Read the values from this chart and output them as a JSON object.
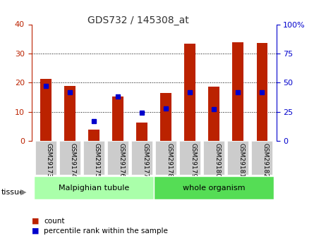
{
  "title": "GDS732 / 145308_at",
  "samples": [
    "GSM29173",
    "GSM29174",
    "GSM29175",
    "GSM29176",
    "GSM29177",
    "GSM29178",
    "GSM29179",
    "GSM29180",
    "GSM29181",
    "GSM29182"
  ],
  "counts": [
    21.2,
    18.9,
    4.0,
    15.2,
    6.2,
    16.5,
    33.3,
    18.7,
    33.8,
    33.5
  ],
  "percentiles": [
    47,
    42,
    17,
    38,
    24,
    28,
    42,
    27,
    42,
    42
  ],
  "bar_color": "#bb2200",
  "dot_color": "#0000cc",
  "ylim_left": [
    0,
    40
  ],
  "ylim_right": [
    0,
    100
  ],
  "left_ticks": [
    0,
    10,
    20,
    30,
    40
  ],
  "right_ticks": [
    0,
    25,
    50,
    75,
    100
  ],
  "right_tick_labels": [
    "0",
    "25",
    "50",
    "75",
    "100%"
  ],
  "groups": [
    {
      "label": "Malpighian tubule",
      "start": 0,
      "end": 5,
      "color": "#aaffaa"
    },
    {
      "label": "whole organism",
      "start": 5,
      "end": 10,
      "color": "#55dd55"
    }
  ],
  "legend_count_label": "count",
  "legend_pct_label": "percentile rank within the sample",
  "tissue_label": "tissue",
  "bg_color": "#ffffff",
  "plot_bg_color": "#ffffff",
  "tick_bg_color": "#cccccc",
  "grid_color": "#000000",
  "title_color": "#333333",
  "left_axis_color": "#bb2200",
  "right_axis_color": "#0000cc"
}
